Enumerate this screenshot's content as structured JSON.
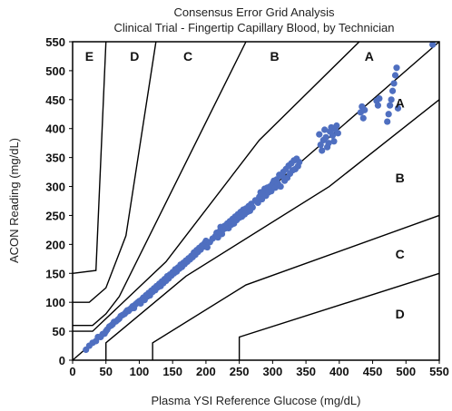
{
  "chart_data": {
    "type": "scatter",
    "title": "Consensus Error Grid Analysis",
    "subtitle": "Clinical Trial - Fingertip Capillary Blood, by Technician",
    "xlabel": "Plasma YSI Reference Glucose (mg/dL)",
    "ylabel": "ACON Reading (mg/dL)",
    "xlim": [
      0,
      550
    ],
    "ylim": [
      0,
      550
    ],
    "xticks": [
      "0",
      "50",
      "100",
      "150",
      "200",
      "250",
      "300",
      "350",
      "400",
      "450",
      "500",
      "550"
    ],
    "yticks": [
      "0",
      "50",
      "100",
      "150",
      "200",
      "250",
      "300",
      "350",
      "400",
      "450",
      "500",
      "550"
    ],
    "grid": false,
    "marker_color": "#4f6fc0",
    "zone_lines": [
      [
        [
          0,
          150
        ],
        [
          35,
          155
        ],
        [
          50,
          550
        ]
      ],
      [
        [
          0,
          100
        ],
        [
          25,
          100
        ],
        [
          50,
          125
        ],
        [
          80,
          215
        ],
        [
          125,
          550
        ]
      ],
      [
        [
          0,
          60
        ],
        [
          30,
          60
        ],
        [
          50,
          80
        ],
        [
          70,
          110
        ],
        [
          260,
          550
        ]
      ],
      [
        [
          0,
          50
        ],
        [
          30,
          50
        ],
        [
          140,
          170
        ],
        [
          280,
          380
        ],
        [
          430,
          550
        ]
      ],
      [
        [
          0,
          0
        ],
        [
          550,
          550
        ]
      ],
      [
        [
          50,
          0
        ],
        [
          50,
          30
        ],
        [
          170,
          145
        ],
        [
          385,
          300
        ],
        [
          550,
          450
        ]
      ],
      [
        [
          120,
          0
        ],
        [
          120,
          30
        ],
        [
          260,
          130
        ],
        [
          550,
          250
        ]
      ],
      [
        [
          250,
          0
        ],
        [
          250,
          40
        ],
        [
          550,
          150
        ]
      ]
    ],
    "zone_labels": [
      {
        "text": "E",
        "x": 25,
        "y": 525
      },
      {
        "text": "D",
        "x": 93,
        "y": 525
      },
      {
        "text": "C",
        "x": 173,
        "y": 525
      },
      {
        "text": "B",
        "x": 303,
        "y": 525
      },
      {
        "text": "A",
        "x": 445,
        "y": 525
      },
      {
        "text": "A",
        "x": 491,
        "y": 444
      },
      {
        "text": "B",
        "x": 491,
        "y": 315
      },
      {
        "text": "C",
        "x": 491,
        "y": 183
      },
      {
        "text": "D",
        "x": 491,
        "y": 80
      }
    ],
    "points": [
      [
        20,
        18
      ],
      [
        25,
        25
      ],
      [
        30,
        30
      ],
      [
        35,
        33
      ],
      [
        38,
        40
      ],
      [
        42,
        40
      ],
      [
        45,
        45
      ],
      [
        48,
        46
      ],
      [
        50,
        50
      ],
      [
        52,
        53
      ],
      [
        55,
        58
      ],
      [
        58,
        60
      ],
      [
        60,
        62
      ],
      [
        62,
        66
      ],
      [
        65,
        67
      ],
      [
        68,
        70
      ],
      [
        70,
        72
      ],
      [
        72,
        76
      ],
      [
        75,
        78
      ],
      [
        78,
        80
      ],
      [
        80,
        83
      ],
      [
        82,
        86
      ],
      [
        84,
        85
      ],
      [
        86,
        88
      ],
      [
        88,
        90
      ],
      [
        90,
        93
      ],
      [
        92,
        90
      ],
      [
        94,
        96
      ],
      [
        96,
        98
      ],
      [
        98,
        100
      ],
      [
        100,
        102
      ],
      [
        102,
        98
      ],
      [
        104,
        105
      ],
      [
        106,
        108
      ],
      [
        108,
        104
      ],
      [
        110,
        112
      ],
      [
        112,
        110
      ],
      [
        114,
        116
      ],
      [
        116,
        112
      ],
      [
        118,
        120
      ],
      [
        120,
        118
      ],
      [
        122,
        124
      ],
      [
        124,
        121
      ],
      [
        126,
        128
      ],
      [
        128,
        126
      ],
      [
        130,
        132
      ],
      [
        132,
        128
      ],
      [
        134,
        136
      ],
      [
        136,
        133
      ],
      [
        138,
        140
      ],
      [
        140,
        137
      ],
      [
        142,
        145
      ],
      [
        144,
        141
      ],
      [
        146,
        148
      ],
      [
        148,
        146
      ],
      [
        150,
        152
      ],
      [
        152,
        150
      ],
      [
        154,
        157
      ],
      [
        156,
        153
      ],
      [
        158,
        160
      ],
      [
        160,
        158
      ],
      [
        162,
        165
      ],
      [
        164,
        161
      ],
      [
        166,
        168
      ],
      [
        168,
        166
      ],
      [
        170,
        172
      ],
      [
        172,
        170
      ],
      [
        174,
        176
      ],
      [
        176,
        174
      ],
      [
        178,
        180
      ],
      [
        180,
        178
      ],
      [
        182,
        186
      ],
      [
        184,
        182
      ],
      [
        186,
        190
      ],
      [
        188,
        187
      ],
      [
        190,
        194
      ],
      [
        192,
        191
      ],
      [
        194,
        198
      ],
      [
        196,
        196
      ],
      [
        198,
        202
      ],
      [
        200,
        206
      ],
      [
        202,
        195
      ],
      [
        206,
        204
      ],
      [
        210,
        210
      ],
      [
        214,
        214
      ],
      [
        216,
        220
      ],
      [
        218,
        212
      ],
      [
        220,
        222
      ],
      [
        222,
        230
      ],
      [
        224,
        218
      ],
      [
        226,
        226
      ],
      [
        228,
        232
      ],
      [
        230,
        228
      ],
      [
        232,
        236
      ],
      [
        234,
        228
      ],
      [
        236,
        240
      ],
      [
        238,
        234
      ],
      [
        240,
        244
      ],
      [
        242,
        236
      ],
      [
        244,
        248
      ],
      [
        246,
        242
      ],
      [
        248,
        252
      ],
      [
        250,
        246
      ],
      [
        252,
        256
      ],
      [
        254,
        248
      ],
      [
        256,
        260
      ],
      [
        258,
        252
      ],
      [
        260,
        262
      ],
      [
        262,
        256
      ],
      [
        264,
        266
      ],
      [
        266,
        258
      ],
      [
        268,
        270
      ],
      [
        270,
        264
      ],
      [
        274,
        276
      ],
      [
        278,
        272
      ],
      [
        280,
        282
      ],
      [
        282,
        290
      ],
      [
        284,
        278
      ],
      [
        286,
        288
      ],
      [
        288,
        296
      ],
      [
        290,
        284
      ],
      [
        292,
        298
      ],
      [
        294,
        290
      ],
      [
        296,
        300
      ],
      [
        298,
        292
      ],
      [
        300,
        305
      ],
      [
        302,
        310
      ],
      [
        304,
        298
      ],
      [
        306,
        312
      ],
      [
        308,
        305
      ],
      [
        310,
        320
      ],
      [
        312,
        300
      ],
      [
        314,
        318
      ],
      [
        316,
        325
      ],
      [
        318,
        310
      ],
      [
        320,
        330
      ],
      [
        322,
        315
      ],
      [
        324,
        336
      ],
      [
        326,
        322
      ],
      [
        328,
        340
      ],
      [
        330,
        328
      ],
      [
        332,
        345
      ],
      [
        334,
        330
      ],
      [
        336,
        348
      ],
      [
        338,
        335
      ],
      [
        340,
        342
      ],
      [
        370,
        390
      ],
      [
        372,
        372
      ],
      [
        374,
        362
      ],
      [
        376,
        380
      ],
      [
        378,
        398
      ],
      [
        380,
        385
      ],
      [
        382,
        368
      ],
      [
        384,
        375
      ],
      [
        386,
        395
      ],
      [
        388,
        402
      ],
      [
        390,
        388
      ],
      [
        392,
        378
      ],
      [
        394,
        398
      ],
      [
        396,
        405
      ],
      [
        398,
        392
      ],
      [
        432,
        428
      ],
      [
        434,
        438
      ],
      [
        436,
        418
      ],
      [
        438,
        432
      ],
      [
        456,
        448
      ],
      [
        458,
        440
      ],
      [
        460,
        452
      ],
      [
        472,
        412
      ],
      [
        474,
        425
      ],
      [
        476,
        440
      ],
      [
        478,
        450
      ],
      [
        480,
        465
      ],
      [
        482,
        478
      ],
      [
        484,
        492
      ],
      [
        486,
        505
      ],
      [
        488,
        435
      ],
      [
        540,
        545
      ]
    ]
  }
}
